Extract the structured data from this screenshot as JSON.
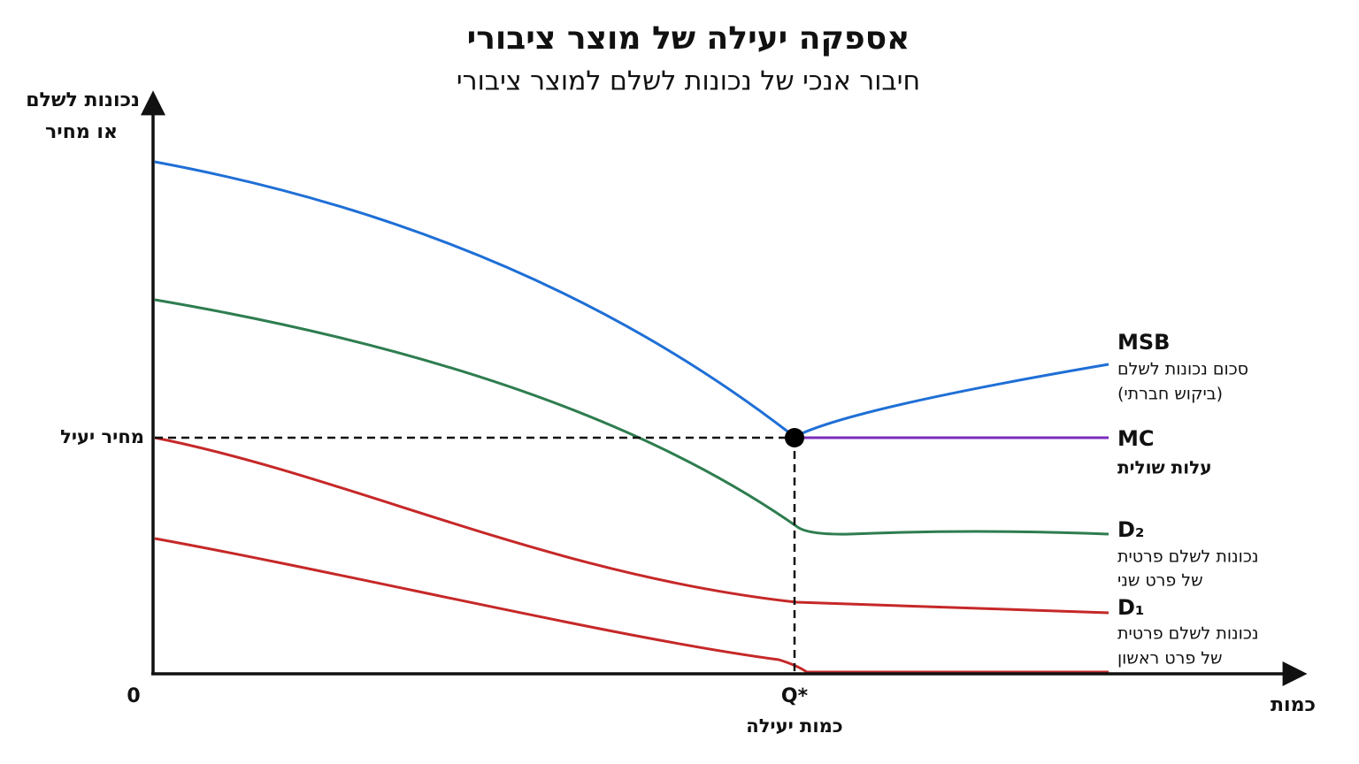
{
  "header": {
    "title": "אספקה יעילה של מוצר ציבורי",
    "subtitle": "חיבור אנכי של נכונות לשלם למוצר ציבורי"
  },
  "axes": {
    "y_label": [
      "נכונות לשלם",
      "או מחיר"
    ],
    "x_label": "כמות",
    "origin": "0"
  },
  "markers": {
    "efficient_price": "מחיר יעיל",
    "efficient_quantity": "Q*",
    "efficient_quantity_label": "כמות יעילה"
  },
  "curves": [
    {
      "name": "MSB",
      "lines": [
        "סכום נכונות לשלם",
        "(ביקוש חברתי)"
      ]
    },
    {
      "name": "MC",
      "lines": [
        "עלות שולית"
      ]
    },
    {
      "name": "D₂",
      "lines": [
        "נכונות לשלם פרטית",
        "של פרט שני"
      ]
    },
    {
      "name": "D₁",
      "lines": [
        "נכונות לשלם פרטית",
        "של פרט ראשון"
      ]
    }
  ]
}
